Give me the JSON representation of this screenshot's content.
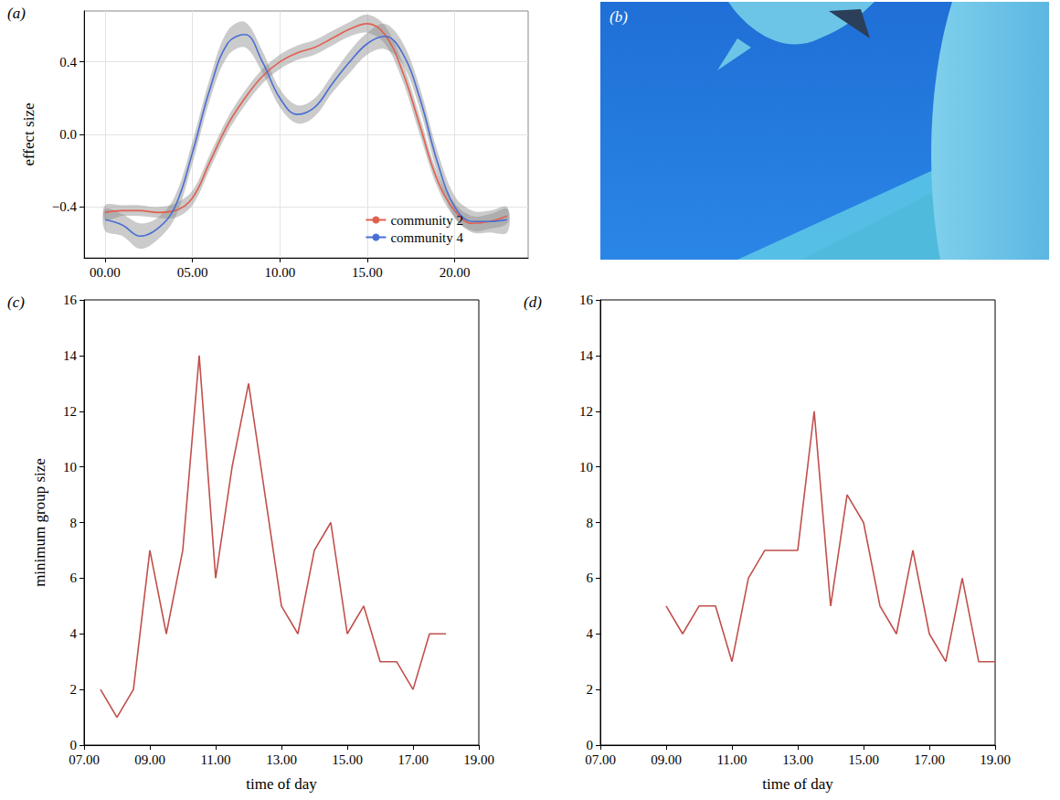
{
  "chart_data": [
    {
      "type": "line",
      "title": "(a)",
      "ylabel": "effect size",
      "grid": true,
      "legend": "lower right",
      "x": [
        0,
        1,
        2,
        3,
        4,
        5,
        6,
        7,
        8,
        9,
        10,
        11,
        12,
        13,
        14,
        15,
        16,
        17,
        18,
        19,
        20,
        21,
        22,
        23
      ],
      "xlim": [
        -1.2,
        24.2
      ],
      "xticks": [
        {
          "value": 0,
          "label": "00.00"
        },
        {
          "value": 5,
          "label": "05.00"
        },
        {
          "value": 10,
          "label": "10.00"
        },
        {
          "value": 15,
          "label": "15.00"
        },
        {
          "value": 20,
          "label": "20.00"
        }
      ],
      "ylim": [
        -0.68,
        0.68
      ],
      "yticks": [
        {
          "value": -0.4,
          "label": "−0.4"
        },
        {
          "value": 0,
          "label": "0.0"
        },
        0.4
      ],
      "series": [
        {
          "name": "community 2",
          "color": "#e0604f",
          "values": [
            -0.43,
            -0.42,
            -0.42,
            -0.43,
            -0.42,
            -0.35,
            -0.15,
            0.05,
            0.2,
            0.32,
            0.4,
            0.45,
            0.48,
            0.53,
            0.58,
            0.61,
            0.55,
            0.35,
            0.05,
            -0.25,
            -0.42,
            -0.49,
            -0.48,
            -0.45
          ],
          "lower": [
            -0.47,
            -0.45,
            -0.45,
            -0.46,
            -0.46,
            -0.39,
            -0.19,
            0.01,
            0.16,
            0.28,
            0.36,
            0.41,
            0.44,
            0.49,
            0.54,
            0.56,
            0.5,
            0.3,
            0.0,
            -0.29,
            -0.46,
            -0.53,
            -0.52,
            -0.49
          ],
          "upper": [
            -0.39,
            -0.39,
            -0.39,
            -0.4,
            -0.38,
            -0.31,
            -0.11,
            0.09,
            0.24,
            0.36,
            0.44,
            0.49,
            0.52,
            0.57,
            0.62,
            0.66,
            0.6,
            0.4,
            0.1,
            -0.21,
            -0.38,
            -0.45,
            -0.44,
            -0.41
          ]
        },
        {
          "name": "community 4",
          "color": "#4a6fd4",
          "values": [
            -0.47,
            -0.5,
            -0.56,
            -0.52,
            -0.4,
            -0.1,
            0.25,
            0.5,
            0.55,
            0.4,
            0.2,
            0.11,
            0.15,
            0.28,
            0.4,
            0.5,
            0.54,
            0.45,
            0.2,
            -0.15,
            -0.4,
            -0.48,
            -0.48,
            -0.47
          ],
          "lower": [
            -0.53,
            -0.56,
            -0.63,
            -0.58,
            -0.46,
            -0.16,
            0.19,
            0.43,
            0.48,
            0.34,
            0.15,
            0.06,
            0.1,
            0.23,
            0.34,
            0.44,
            0.47,
            0.39,
            0.14,
            -0.21,
            -0.46,
            -0.54,
            -0.54,
            -0.54
          ],
          "upper": [
            -0.41,
            -0.44,
            -0.49,
            -0.46,
            -0.34,
            -0.04,
            0.31,
            0.57,
            0.62,
            0.46,
            0.25,
            0.16,
            0.2,
            0.33,
            0.46,
            0.56,
            0.61,
            0.51,
            0.26,
            -0.09,
            -0.34,
            -0.42,
            -0.42,
            -0.4
          ]
        }
      ]
    },
    {
      "type": "image",
      "title": "(b)"
    },
    {
      "type": "line",
      "title": "(c)",
      "xlabel": "time of day",
      "ylabel": "minimum group size",
      "color": "#c0504d",
      "x": [
        7.5,
        8,
        8.5,
        9,
        9.5,
        10,
        10.5,
        11,
        11.5,
        12,
        12.5,
        13,
        13.5,
        14,
        14.5,
        15,
        15.5,
        16,
        16.5,
        17,
        17.5,
        18
      ],
      "values": [
        2,
        1,
        2,
        7,
        4,
        7,
        14,
        6,
        10,
        13,
        9,
        5,
        4,
        7,
        8,
        4,
        5,
        3,
        3,
        2,
        4,
        4
      ],
      "xlim": [
        7,
        19
      ],
      "xticks": [
        {
          "value": 7,
          "label": "07.00"
        },
        {
          "value": 9,
          "label": "09.00"
        },
        {
          "value": 11,
          "label": "11.00"
        },
        {
          "value": 13,
          "label": "13.00"
        },
        {
          "value": 15,
          "label": "15.00"
        },
        {
          "value": 17,
          "label": "17.00"
        },
        {
          "value": 19,
          "label": "19.00"
        }
      ],
      "ylim": [
        0,
        16
      ],
      "yticks": [
        0,
        2,
        4,
        6,
        8,
        10,
        12,
        14,
        16
      ]
    },
    {
      "type": "line",
      "title": "(d)",
      "xlabel": "time of day",
      "color": "#c0504d",
      "x": [
        9,
        9.5,
        10,
        10.5,
        11,
        11.5,
        12,
        12.5,
        13,
        13.5,
        14,
        14.5,
        15,
        15.5,
        16,
        16.5,
        17,
        17.5,
        18,
        18.5,
        19
      ],
      "values": [
        5,
        4,
        5,
        5,
        3,
        6,
        7,
        7,
        7,
        12,
        5,
        9,
        8,
        5,
        4,
        7,
        4,
        3,
        6,
        3,
        3
      ],
      "xlim": [
        7,
        19
      ],
      "xticks": [
        {
          "value": 7,
          "label": "07.00"
        },
        {
          "value": 9,
          "label": "09.00"
        },
        {
          "value": 11,
          "label": "11.00"
        },
        {
          "value": 13,
          "label": "13.00"
        },
        {
          "value": 15,
          "label": "15.00"
        },
        {
          "value": 17,
          "label": "17.00"
        },
        {
          "value": 19,
          "label": "19.00"
        }
      ],
      "ylim": [
        0,
        16
      ],
      "yticks": [
        0,
        2,
        4,
        6,
        8,
        10,
        12,
        14,
        16
      ]
    }
  ]
}
